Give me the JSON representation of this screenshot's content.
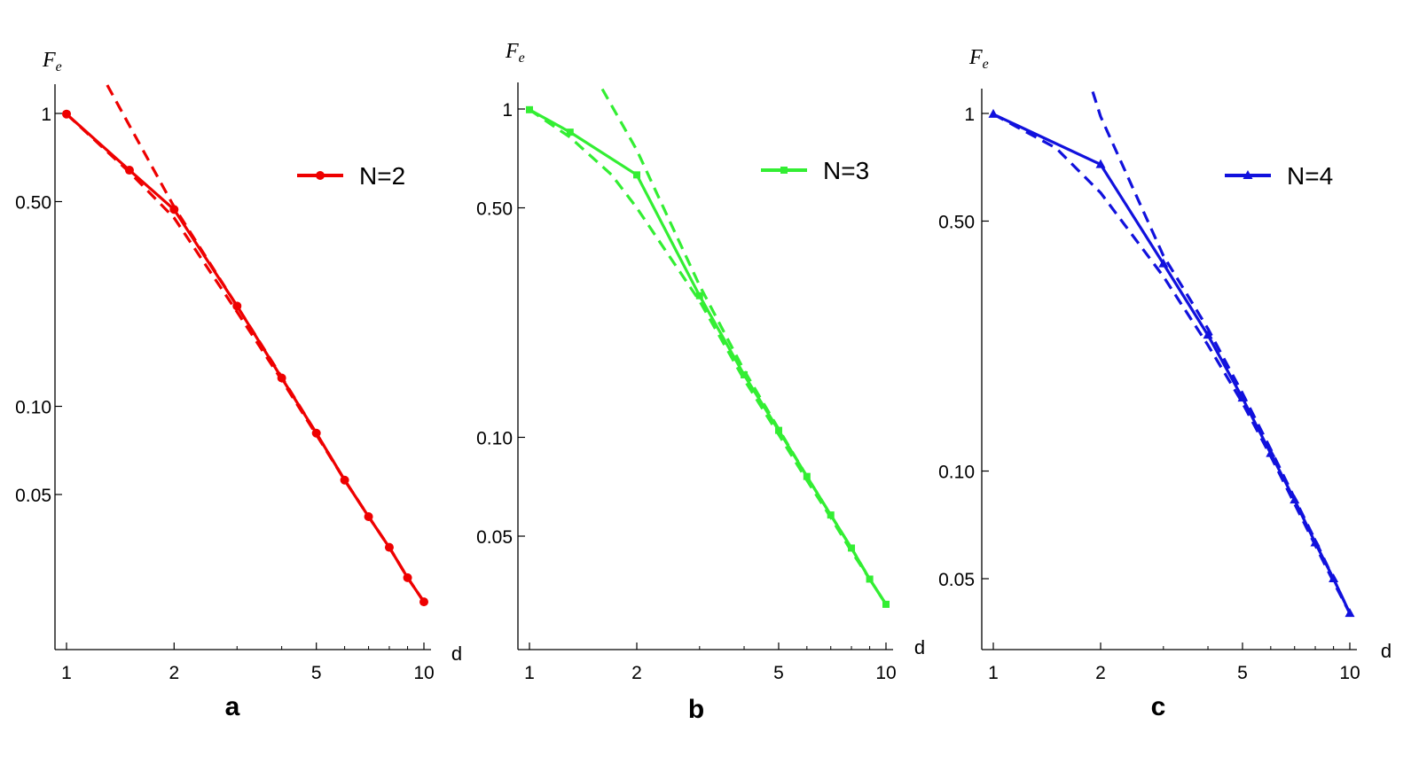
{
  "chart_data": [
    {
      "type": "line",
      "panel_label": "a",
      "xlabel": "d",
      "ylabel": "F",
      "ylabel_subscript": "e",
      "x_scale": "log",
      "y_scale": "log",
      "x_ticks": [
        1,
        2,
        5,
        10
      ],
      "x_tick_labels": [
        "1",
        "2",
        "5",
        "10"
      ],
      "y_ticks": [
        1,
        0.5,
        0.1,
        0.05
      ],
      "y_tick_labels": [
        "1",
        "0.50",
        "0.10",
        "0.05"
      ],
      "xlim": [
        0.93,
        10
      ],
      "ylim": [
        0.02,
        1.25
      ],
      "color": "#ee0000",
      "marker": "circle",
      "legend_position": "top-right",
      "series": [
        {
          "name": "N=2",
          "style": "solid-markers",
          "x": [
            1,
            1.5,
            2,
            3,
            4,
            5,
            6,
            7,
            8,
            9,
            10
          ],
          "y": [
            0.995,
            0.64,
            0.47,
            0.22,
            0.125,
            0.081,
            0.056,
            0.042,
            0.033,
            0.026,
            0.0215
          ]
        },
        {
          "style": "dashed",
          "x": [
            1.3,
            2,
            3,
            4,
            5,
            6,
            7,
            8,
            9,
            10
          ],
          "y": [
            1.25,
            0.48,
            0.22,
            0.126,
            0.081,
            0.056,
            0.042,
            0.033,
            0.026,
            0.0215
          ]
        },
        {
          "style": "dashed",
          "x": [
            1,
            1.5,
            2,
            3,
            4,
            5,
            6,
            7,
            8,
            9,
            10
          ],
          "y": [
            0.995,
            0.63,
            0.44,
            0.21,
            0.123,
            0.08,
            0.056,
            0.042,
            0.033,
            0.026,
            0.0215
          ]
        }
      ]
    },
    {
      "type": "line",
      "panel_label": "b",
      "xlabel": "d",
      "ylabel": "F",
      "ylabel_subscript": "e",
      "x_scale": "log",
      "y_scale": "log",
      "x_ticks": [
        1,
        2,
        5,
        10
      ],
      "x_tick_labels": [
        "1",
        "2",
        "5",
        "10"
      ],
      "y_ticks": [
        1,
        0.5,
        0.1,
        0.05
      ],
      "y_tick_labels": [
        "1",
        "0.50",
        "0.10",
        "0.05"
      ],
      "xlim": [
        0.95,
        10
      ],
      "ylim": [
        0.022,
        1.15
      ],
      "color": "#33ee33",
      "marker": "square",
      "legend_position": "top-right",
      "series": [
        {
          "name": "N=3",
          "style": "solid-markers",
          "x": [
            1,
            1.3,
            2,
            3,
            4,
            5,
            6,
            7,
            8,
            9,
            10
          ],
          "y": [
            0.995,
            0.85,
            0.63,
            0.27,
            0.155,
            0.105,
            0.076,
            0.058,
            0.046,
            0.037,
            0.031
          ]
        },
        {
          "style": "dashed",
          "x": [
            1.6,
            2,
            3,
            4,
            5,
            6,
            7,
            8,
            9,
            10
          ],
          "y": [
            1.15,
            0.75,
            0.29,
            0.16,
            0.106,
            0.076,
            0.058,
            0.046,
            0.037,
            0.031
          ]
        },
        {
          "style": "dashed",
          "x": [
            1,
            1.3,
            1.7,
            2,
            3,
            4,
            5,
            6,
            7,
            8,
            9,
            10
          ],
          "y": [
            0.995,
            0.82,
            0.63,
            0.5,
            0.26,
            0.15,
            0.102,
            0.074,
            0.057,
            0.045,
            0.037,
            0.031
          ]
        }
      ]
    },
    {
      "type": "line",
      "panel_label": "c",
      "xlabel": "d",
      "ylabel": "F",
      "ylabel_subscript": "e",
      "x_scale": "log",
      "y_scale": "log",
      "x_ticks": [
        1,
        2,
        5,
        10
      ],
      "x_tick_labels": [
        "1",
        "2",
        "5",
        "10"
      ],
      "y_ticks": [
        1,
        0.5,
        0.1,
        0.05
      ],
      "y_tick_labels": [
        "1",
        "0.50",
        "0.10",
        "0.05"
      ],
      "xlim": [
        0.93,
        10
      ],
      "ylim": [
        0.03,
        1.15
      ],
      "color": "#1111dd",
      "marker": "triangle",
      "legend_position": "top-right",
      "series": [
        {
          "name": "N=4",
          "style": "solid-markers",
          "x": [
            1,
            2,
            3,
            4,
            5,
            6,
            7,
            8,
            9,
            10
          ],
          "y": [
            0.995,
            0.72,
            0.38,
            0.24,
            0.16,
            0.112,
            0.083,
            0.063,
            0.05,
            0.04
          ]
        },
        {
          "style": "dashed",
          "x": [
            1.9,
            2,
            3,
            4,
            5,
            6,
            7,
            8,
            9,
            10
          ],
          "y": [
            1.15,
            0.98,
            0.4,
            0.25,
            0.165,
            0.115,
            0.084,
            0.064,
            0.05,
            0.04
          ]
        },
        {
          "style": "dashed",
          "x": [
            1,
            1.5,
            2,
            3,
            4,
            5,
            6,
            7,
            8,
            9,
            10
          ],
          "y": [
            0.995,
            0.8,
            0.6,
            0.35,
            0.225,
            0.155,
            0.11,
            0.081,
            0.062,
            0.049,
            0.04
          ]
        }
      ]
    }
  ]
}
